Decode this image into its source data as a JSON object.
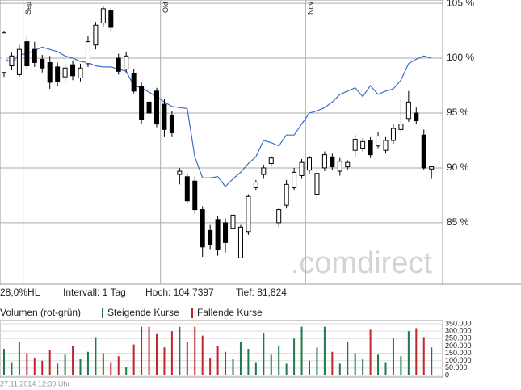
{
  "chart_data": {
    "type": "candlestick",
    "categories": [
      null,
      null,
      null,
      "Sep",
      null,
      null,
      null,
      null,
      null,
      null,
      null,
      null,
      null,
      null,
      null,
      null,
      null,
      null,
      null,
      null,
      null,
      "Okt",
      null,
      null,
      null,
      null,
      null,
      null,
      null,
      null,
      null,
      null,
      null,
      null,
      null,
      null,
      null,
      null,
      null,
      null,
      "Nov",
      null,
      null,
      null,
      null,
      null,
      null,
      null,
      null,
      null,
      null,
      null,
      null,
      null,
      null,
      null,
      null
    ],
    "open": [
      98.7,
      99.3,
      98.5,
      101.5,
      100.8,
      99.9,
      99.6,
      99.2,
      98.3,
      99.4,
      98.2,
      99.5,
      101.2,
      103.2,
      104.3,
      100,
      99,
      98.6,
      97.4,
      96,
      97,
      95.8,
      94.8,
      89.4,
      89.2,
      88.8,
      86.2,
      84.3,
      85.3,
      85,
      84.5,
      81.8,
      84.2,
      88.2,
      89.4,
      90.4,
      85,
      86.6,
      88.2,
      89.3,
      89.8,
      87.6,
      90,
      91,
      89.7,
      90.1,
      91.6,
      91.8,
      92.5,
      92,
      91.6,
      92.5,
      93.5,
      94.5,
      95,
      93,
      89.9
    ],
    "high": [
      102.5,
      100.5,
      101.2,
      102,
      101.5,
      100.3,
      100.2,
      99.6,
      99.6,
      99.8,
      99.5,
      102,
      103.3,
      104.7,
      104.6,
      100.4,
      100.6,
      99,
      97.8,
      96.4,
      97.3,
      96.3,
      95.2,
      90,
      89.5,
      89.2,
      86.5,
      84.8,
      85.6,
      85.4,
      86,
      84.8,
      87.6,
      88.9,
      90.3,
      91.1,
      86.4,
      88.9,
      90,
      90.8,
      91.1,
      89.8,
      91.5,
      91.3,
      90.9,
      90.7,
      93,
      92.7,
      92.8,
      93.3,
      92.8,
      94,
      96.2,
      97,
      95.5,
      93.5,
      90.2
    ],
    "low": [
      98.3,
      98.9,
      98.3,
      99,
      99.2,
      98.7,
      97.2,
      97.5,
      97.9,
      98,
      97.9,
      99.2,
      100.8,
      102.8,
      102.5,
      98.5,
      98.7,
      96.8,
      94,
      94.6,
      93.7,
      92.8,
      92.8,
      88.5,
      86.8,
      85.8,
      81.9,
      82.6,
      82,
      82.3,
      84.2,
      81.8,
      83.9,
      88,
      89,
      90.1,
      84.6,
      86.3,
      88,
      89,
      89.5,
      87.2,
      89.7,
      89.8,
      89.3,
      89.8,
      91,
      91.5,
      90.9,
      91.8,
      91.3,
      92.2,
      93.2,
      94.2,
      94,
      89.8,
      89
    ],
    "close": [
      102.3,
      100.2,
      100.8,
      99.3,
      99.6,
      99.1,
      97.8,
      97.9,
      99.1,
      98.4,
      99.1,
      101.5,
      103,
      104.5,
      102.8,
      98.8,
      100.2,
      97,
      94.4,
      95,
      94,
      93.5,
      93.2,
      89.7,
      87,
      86.2,
      82.8,
      83,
      82.6,
      83.2,
      85.7,
      84.6,
      87.4,
      88.7,
      90,
      90.9,
      86.2,
      88.5,
      89.6,
      90.5,
      90.9,
      89.5,
      91.2,
      90.1,
      90.6,
      90.5,
      92.6,
      92.4,
      91.2,
      92.9,
      92.5,
      93.6,
      94,
      96,
      94.3,
      90,
      90.1
    ],
    "benchmark": {
      "color": "#3a6fc8",
      "values": [
        100,
        99.6,
        100.3,
        100.4,
        100.7,
        101,
        100.8,
        100.6,
        100.2,
        100,
        99.7,
        99.6,
        99.3,
        99.2,
        99.2,
        99,
        98.8,
        97.5,
        97.3,
        96.9,
        96.5,
        96,
        95.6,
        95.5,
        95.4,
        91,
        89.1,
        89.1,
        89.2,
        88.3,
        89,
        89.6,
        90.4,
        91,
        92.5,
        92.3,
        92,
        93,
        93,
        94,
        95,
        95.2,
        95.5,
        96,
        96.7,
        97,
        97.3,
        96.5,
        97.5,
        96.7,
        97,
        97.2,
        98,
        99.5,
        99.9,
        100.2,
        100
      ]
    },
    "ylim": [
      79.4,
      105.3
    ],
    "yticks": [
      {
        "value": 85,
        "label": "85 %"
      },
      {
        "value": 90,
        "label": "90 %"
      },
      {
        "value": 95,
        "label": "95 %"
      },
      {
        "value": 100,
        "label": "100 %"
      },
      {
        "value": 105,
        "label": "105 %"
      }
    ],
    "grid": true,
    "info": [
      "28,0%HL",
      "Intervall: 1 Tag",
      "Hoch: 104,7397",
      "Tief: 81,824"
    ],
    "volume": {
      "title": "Volumen (rot-grün)",
      "ylim": [
        0,
        350000
      ],
      "yticks": [
        0,
        {
          "value": 50000,
          "label": "50.000"
        },
        {
          "value": 100000,
          "label": "100.000"
        },
        {
          "value": 150000,
          "label": "150.000"
        },
        {
          "value": 200000,
          "label": "200.000"
        },
        {
          "value": 250000,
          "label": "250.000"
        },
        {
          "value": 300000,
          "label": "300.000"
        },
        {
          "value": 350000,
          "label": "350.000"
        }
      ],
      "series": [
        {
          "name": "Steigende Kurse",
          "color": "#1e7a4a",
          "values": [
            180000,
            90000,
            230000,
            null,
            null,
            null,
            null,
            null,
            140000,
            null,
            110000,
            160000,
            260000,
            150000,
            null,
            null,
            60000,
            null,
            null,
            null,
            null,
            null,
            null,
            330000,
            null,
            null,
            null,
            null,
            null,
            null,
            110000,
            230000,
            180000,
            90000,
            290000,
            140000,
            200000,
            80000,
            250000,
            330000,
            100000,
            190000,
            330000,
            null,
            80000,
            230000,
            150000,
            110000,
            null,
            140000,
            90000,
            250000,
            130000,
            300000,
            null,
            null,
            190000
          ]
        },
        {
          "name": "Fallende Kurse",
          "color": "#c0272d",
          "values": [
            null,
            null,
            null,
            150000,
            120000,
            100000,
            170000,
            80000,
            null,
            200000,
            null,
            null,
            null,
            null,
            90000,
            130000,
            null,
            210000,
            330000,
            330000,
            280000,
            190000,
            300000,
            null,
            230000,
            330000,
            270000,
            120000,
            200000,
            160000,
            null,
            null,
            null,
            null,
            null,
            null,
            null,
            null,
            null,
            null,
            null,
            null,
            null,
            160000,
            null,
            null,
            null,
            null,
            310000,
            null,
            null,
            null,
            null,
            null,
            320000,
            260000,
            null
          ]
        }
      ]
    },
    "watermark": ".comdirect",
    "footer": "27.11.2014 12:39 Uhr"
  }
}
